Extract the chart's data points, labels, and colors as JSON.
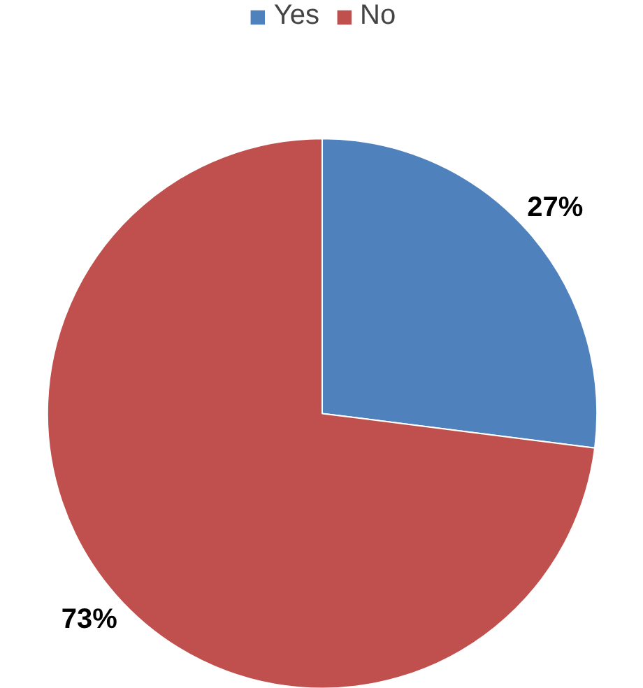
{
  "chart_data": {
    "type": "pie",
    "categories": [
      "Yes",
      "No"
    ],
    "values": [
      27,
      73
    ],
    "colors": [
      "#4f81bd",
      "#c0504d"
    ],
    "value_labels": [
      "27%",
      "73%"
    ],
    "legend": "top"
  }
}
